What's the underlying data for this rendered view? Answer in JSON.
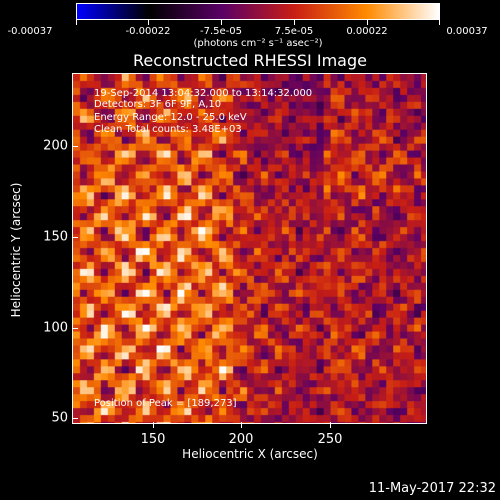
{
  "colorbar": {
    "tick_labels": [
      "-0.00037",
      "-0.00022",
      "-7.5e-05",
      "7.5e-05",
      "0.00022",
      "0.00037"
    ],
    "units": "(photons cm⁻² s⁻¹ asec⁻²)",
    "colors": [
      "#0000ff",
      "#000000",
      "#5a0066",
      "#c81e14",
      "#ff8a00",
      "#ffffff"
    ]
  },
  "title": "Reconstructed RHESSI Image",
  "info": {
    "time": "19-Sep-2014 13:04:32.000 to 13:14:32.000",
    "detectors": "Detectors: 3F 6F 9F, A,10",
    "energy": "Energy Range: 12.0 - 25.0 keV",
    "clean": "Clean    Total counts: 3.48E+03",
    "peak": "Position of Peak = [189,273]"
  },
  "axes": {
    "xlabel": "Heliocentric X (arcsec)",
    "ylabel": "Heliocentric Y (arcsec)",
    "xticks": [
      "150",
      "200",
      "250"
    ],
    "yticks": [
      "200",
      "150",
      "100",
      "50"
    ],
    "xlim": [
      108,
      300
    ],
    "ylim": [
      48,
      242
    ]
  },
  "date": "11-May-2017 22:32"
}
